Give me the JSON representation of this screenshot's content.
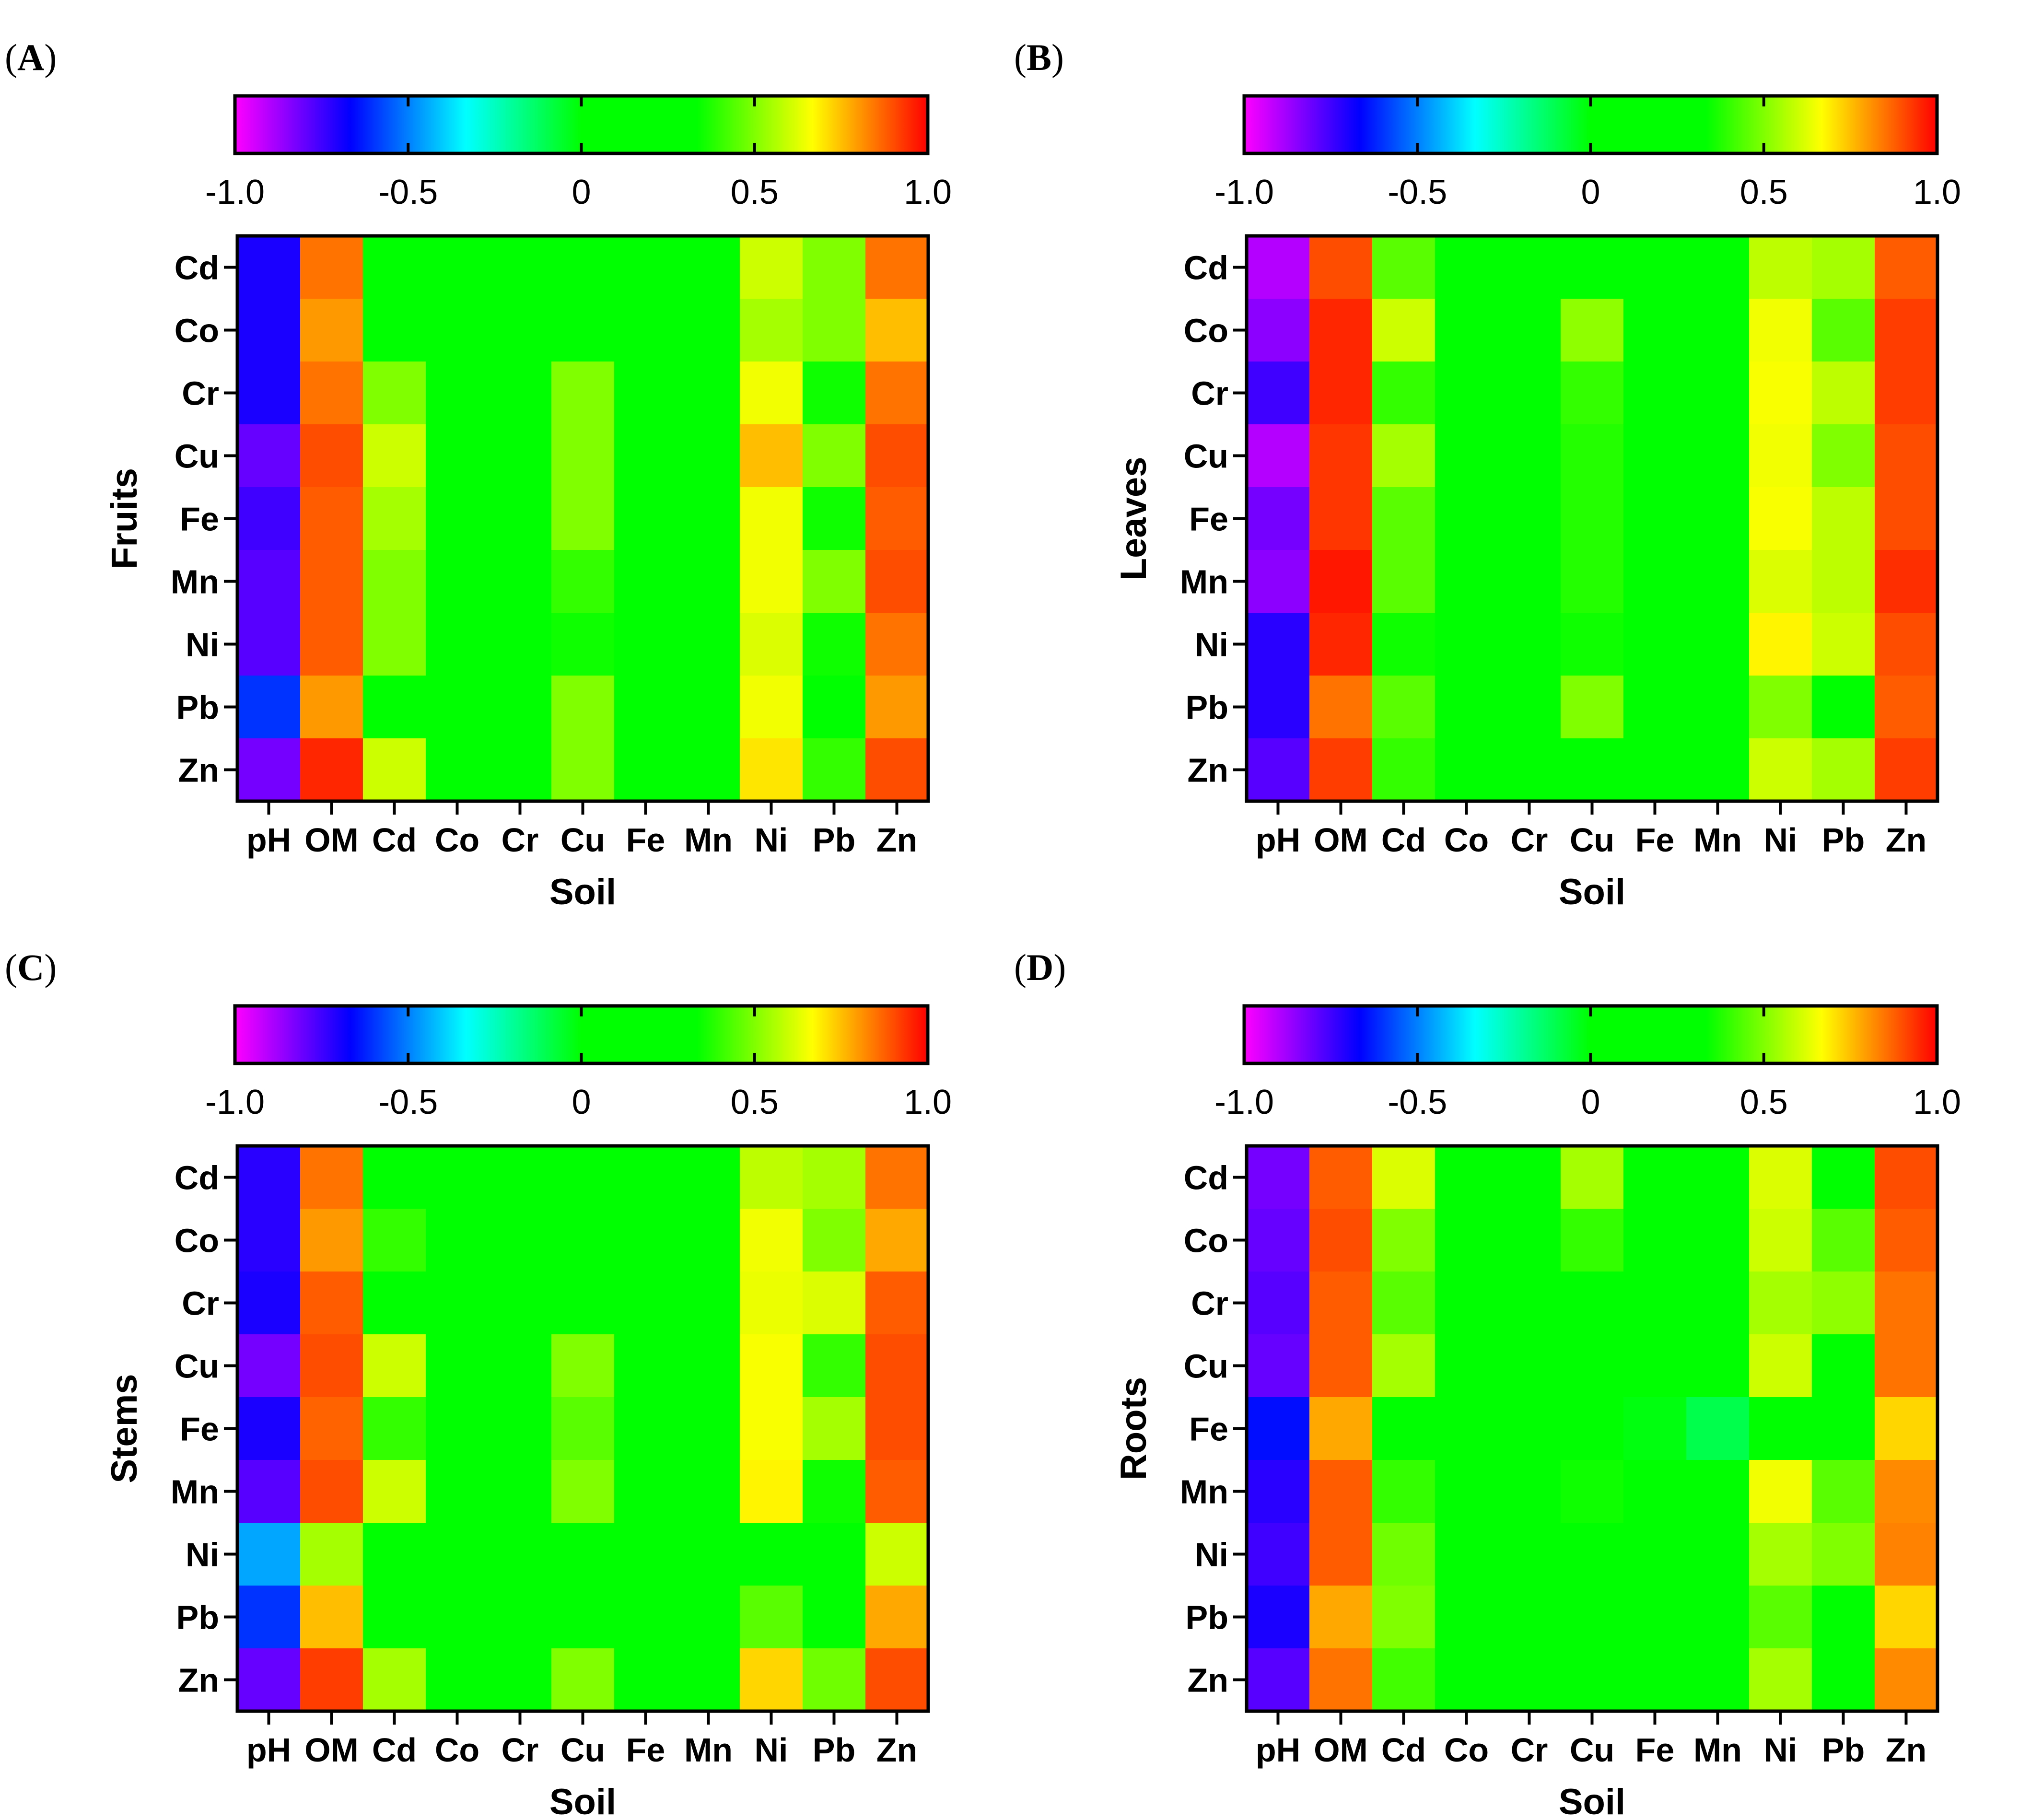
{
  "figure": {
    "colorbar": {
      "ticks": [
        "-1.0",
        "-0.5",
        "0",
        "0.5",
        "1.0"
      ],
      "tick_values": [
        -1.0,
        -0.5,
        0,
        0.5,
        1.0
      ],
      "range": [
        -1.0,
        1.0
      ],
      "colors": [
        "#ff00ff",
        "#0000ff",
        "#00ffff",
        "#00ff00",
        "#00ff00",
        "#ffff00",
        "#ff0000"
      ]
    }
  },
  "chart_data": [
    {
      "type": "heatmap",
      "label": "A",
      "xlabel": "Soil",
      "ylabel": "Fruits",
      "columns": [
        "pH",
        "OM",
        "Cd",
        "Co",
        "Cr",
        "Cu",
        "Fe",
        "Mn",
        "Ni",
        "Pb",
        "Zn"
      ],
      "rows": [
        "Cd",
        "Co",
        "Cr",
        "Cu",
        "Fe",
        "Mn",
        "Ni",
        "Pb",
        "Zn"
      ],
      "values": [
        [
          -0.7,
          0.85,
          0.25,
          0.05,
          0.05,
          0.15,
          0.05,
          0.05,
          0.6,
          0.5,
          0.85
        ],
        [
          -0.7,
          0.8,
          0.05,
          0.05,
          0.05,
          0.05,
          0.05,
          0.05,
          0.55,
          0.5,
          0.75
        ],
        [
          -0.7,
          0.85,
          0.5,
          0.05,
          0.05,
          0.5,
          0.05,
          0.05,
          0.65,
          0.35,
          0.85
        ],
        [
          -0.8,
          0.9,
          0.6,
          0.05,
          0.05,
          0.5,
          0.05,
          0.05,
          0.75,
          0.5,
          0.9
        ],
        [
          -0.75,
          0.88,
          0.55,
          0.05,
          0.05,
          0.5,
          0.05,
          0.05,
          0.65,
          0.35,
          0.88
        ],
        [
          -0.78,
          0.88,
          0.5,
          0.05,
          0.05,
          0.4,
          0.05,
          0.05,
          0.65,
          0.5,
          0.9
        ],
        [
          -0.78,
          0.88,
          0.5,
          0.05,
          0.05,
          0.35,
          0.05,
          0.05,
          0.62,
          0.35,
          0.85
        ],
        [
          -0.6,
          0.8,
          0.3,
          0.05,
          0.05,
          0.5,
          0.05,
          0.05,
          0.65,
          0.2,
          0.8
        ],
        [
          -0.82,
          0.95,
          0.6,
          0.05,
          0.05,
          0.5,
          0.05,
          0.05,
          0.7,
          0.4,
          0.9
        ]
      ]
    },
    {
      "type": "heatmap",
      "label": "B",
      "xlabel": "Soil",
      "ylabel": "Leaves",
      "columns": [
        "pH",
        "OM",
        "Cd",
        "Co",
        "Cr",
        "Cu",
        "Fe",
        "Mn",
        "Ni",
        "Pb",
        "Zn"
      ],
      "rows": [
        "Cd",
        "Co",
        "Cr",
        "Cu",
        "Fe",
        "Mn",
        "Ni",
        "Pb",
        "Zn"
      ],
      "values": [
        [
          -0.9,
          0.9,
          0.45,
          0.05,
          0.05,
          0.05,
          0.05,
          0.05,
          0.58,
          0.55,
          0.88
        ],
        [
          -0.85,
          0.95,
          0.6,
          0.05,
          0.05,
          0.52,
          0.05,
          0.05,
          0.65,
          0.45,
          0.92
        ],
        [
          -0.75,
          0.95,
          0.4,
          0.05,
          0.05,
          0.4,
          0.05,
          0.05,
          0.66,
          0.58,
          0.92
        ],
        [
          -0.9,
          0.93,
          0.55,
          0.05,
          0.05,
          0.38,
          0.05,
          0.05,
          0.65,
          0.5,
          0.9
        ],
        [
          -0.82,
          0.93,
          0.45,
          0.05,
          0.05,
          0.38,
          0.05,
          0.05,
          0.66,
          0.58,
          0.9
        ],
        [
          -0.85,
          0.97,
          0.45,
          0.05,
          0.05,
          0.38,
          0.05,
          0.05,
          0.62,
          0.58,
          0.94
        ],
        [
          -0.72,
          0.95,
          0.35,
          0.05,
          0.05,
          0.35,
          0.05,
          0.05,
          0.68,
          0.6,
          0.9
        ],
        [
          -0.72,
          0.85,
          0.45,
          0.05,
          0.05,
          0.5,
          0.05,
          0.05,
          0.5,
          0.05,
          0.88
        ],
        [
          -0.78,
          0.92,
          0.4,
          0.05,
          0.05,
          0.33,
          0.05,
          0.05,
          0.6,
          0.55,
          0.92
        ]
      ]
    },
    {
      "type": "heatmap",
      "label": "C",
      "xlabel": "Soil",
      "ylabel": "Stems",
      "columns": [
        "pH",
        "OM",
        "Cd",
        "Co",
        "Cr",
        "Cu",
        "Fe",
        "Mn",
        "Ni",
        "Pb",
        "Zn"
      ],
      "rows": [
        "Cd",
        "Co",
        "Cr",
        "Cu",
        "Fe",
        "Mn",
        "Ni",
        "Pb",
        "Zn"
      ],
      "values": [
        [
          -0.72,
          0.85,
          0.3,
          0.05,
          0.05,
          0.3,
          0.05,
          0.05,
          0.58,
          0.55,
          0.85
        ],
        [
          -0.72,
          0.8,
          0.4,
          0.05,
          0.05,
          0.15,
          0.05,
          0.05,
          0.65,
          0.5,
          0.78
        ],
        [
          -0.7,
          0.88,
          0.05,
          0.05,
          0.05,
          0.05,
          0.05,
          0.05,
          0.64,
          0.62,
          0.88
        ],
        [
          -0.82,
          0.9,
          0.6,
          0.05,
          0.05,
          0.5,
          0.05,
          0.05,
          0.66,
          0.4,
          0.9
        ],
        [
          -0.7,
          0.87,
          0.4,
          0.05,
          0.05,
          0.45,
          0.05,
          0.05,
          0.66,
          0.55,
          0.9
        ],
        [
          -0.78,
          0.9,
          0.6,
          0.05,
          0.05,
          0.5,
          0.05,
          0.05,
          0.68,
          0.35,
          0.88
        ],
        [
          -0.45,
          0.55,
          0.05,
          0.05,
          0.05,
          0.05,
          0.05,
          0.05,
          0.05,
          0.05,
          0.6
        ],
        [
          -0.6,
          0.75,
          0.05,
          0.05,
          0.05,
          0.3,
          0.05,
          0.05,
          0.45,
          0.25,
          0.78
        ],
        [
          -0.8,
          0.92,
          0.55,
          0.05,
          0.05,
          0.5,
          0.05,
          0.05,
          0.72,
          0.48,
          0.9
        ]
      ]
    },
    {
      "type": "heatmap",
      "label": "D",
      "xlabel": "Soil",
      "ylabel": "Roots",
      "columns": [
        "pH",
        "OM",
        "Cd",
        "Co",
        "Cr",
        "Cu",
        "Fe",
        "Mn",
        "Ni",
        "Pb",
        "Zn"
      ],
      "rows": [
        "Cd",
        "Co",
        "Cr",
        "Cu",
        "Fe",
        "Mn",
        "Ni",
        "Pb",
        "Zn"
      ],
      "values": [
        [
          -0.82,
          0.88,
          0.62,
          0.05,
          0.05,
          0.55,
          0.05,
          0.05,
          0.62,
          0.05,
          0.9
        ],
        [
          -0.8,
          0.9,
          0.5,
          0.05,
          0.05,
          0.4,
          0.05,
          0.05,
          0.6,
          0.45,
          0.88
        ],
        [
          -0.78,
          0.88,
          0.45,
          0.05,
          0.05,
          0.15,
          0.05,
          0.05,
          0.55,
          0.52,
          0.85
        ],
        [
          -0.8,
          0.88,
          0.55,
          0.05,
          0.05,
          0.3,
          0.05,
          0.05,
          0.6,
          0.3,
          0.85
        ],
        [
          -0.65,
          0.78,
          0.05,
          0.05,
          0.0,
          0.0,
          -0.02,
          -0.1,
          0.05,
          0.05,
          0.72
        ],
        [
          -0.72,
          0.88,
          0.4,
          0.05,
          0.05,
          0.35,
          0.05,
          0.05,
          0.65,
          0.45,
          0.82
        ],
        [
          -0.75,
          0.88,
          0.48,
          0.05,
          0.05,
          0.2,
          0.05,
          0.05,
          0.55,
          0.5,
          0.83
        ],
        [
          -0.7,
          0.78,
          0.5,
          0.05,
          0.05,
          0.05,
          0.05,
          0.05,
          0.45,
          0.05,
          0.72
        ],
        [
          -0.78,
          0.85,
          0.42,
          0.05,
          0.05,
          0.05,
          0.05,
          0.05,
          0.55,
          0.3,
          0.82
        ]
      ]
    }
  ]
}
